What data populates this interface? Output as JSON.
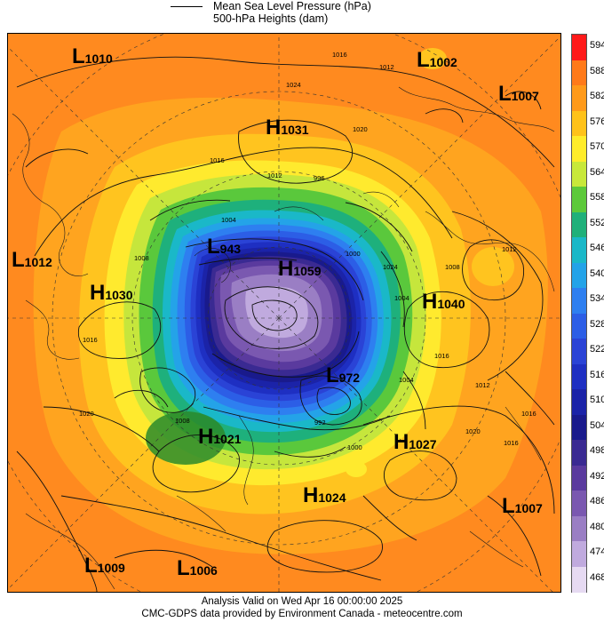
{
  "legend": {
    "mslp_label": "Mean Sea Level Pressure (hPa)",
    "heights_label": "500-hPa Heights (dam)"
  },
  "colorbar": {
    "levels": [
      {
        "label": "594",
        "color": "#ff1a1a"
      },
      {
        "label": "588",
        "color": "#ff7a1a"
      },
      {
        "label": "582",
        "color": "#ff9a1a"
      },
      {
        "label": "576",
        "color": "#ffc21a"
      },
      {
        "label": "570",
        "color": "#ffec2a"
      },
      {
        "label": "564",
        "color": "#c8e83a"
      },
      {
        "label": "558",
        "color": "#5cc93a"
      },
      {
        "label": "552",
        "color": "#1fb07a"
      },
      {
        "label": "546",
        "color": "#1ab8c8"
      },
      {
        "label": "540",
        "color": "#23a3e8"
      },
      {
        "label": "534",
        "color": "#2e7ff0"
      },
      {
        "label": "528",
        "color": "#2c5ee6"
      },
      {
        "label": "522",
        "color": "#2a43d6"
      },
      {
        "label": "516",
        "color": "#1e2fc2"
      },
      {
        "label": "510",
        "color": "#1b23a8"
      },
      {
        "label": "504",
        "color": "#191a8c"
      },
      {
        "label": "498",
        "color": "#3a2a92"
      },
      {
        "label": "492",
        "color": "#5a3a9e"
      },
      {
        "label": "486",
        "color": "#7a58b0"
      },
      {
        "label": "480",
        "color": "#9a7ec4"
      },
      {
        "label": "474",
        "color": "#c0aade"
      },
      {
        "label": "468",
        "color": "#e6daf2"
      }
    ]
  },
  "pressure_centers": [
    {
      "type": "L",
      "value": "1010"
    },
    {
      "type": "L",
      "value": "1002"
    },
    {
      "type": "L",
      "value": "1007"
    },
    {
      "type": "H",
      "value": "1031"
    },
    {
      "type": "L",
      "value": "1012"
    },
    {
      "type": "H",
      "value": "1030"
    },
    {
      "type": "L",
      "value": "943"
    },
    {
      "type": "H",
      "value": "1059"
    },
    {
      "type": "H",
      "value": "1040"
    },
    {
      "type": "L",
      "value": "972"
    },
    {
      "type": "H",
      "value": "1021"
    },
    {
      "type": "H",
      "value": "1027"
    },
    {
      "type": "H",
      "value": "1024"
    },
    {
      "type": "L",
      "value": "1007"
    },
    {
      "type": "L",
      "value": "1009"
    },
    {
      "type": "L",
      "value": "1006"
    }
  ],
  "isobar_labels": [
    "1016",
    "1012",
    "1024",
    "1020",
    "1016",
    "1012",
    "1008",
    "1004",
    "996",
    "1000",
    "1024",
    "1012",
    "1008",
    "1004",
    "1016",
    "1020",
    "1016",
    "1012",
    "1016",
    "1020",
    "1016",
    "1008",
    "1000",
    "1004",
    "992"
  ],
  "footer": {
    "line1": "Analysis Valid on Wed Apr 16 00:00:00 2025",
    "line2": "CMC-GDPS data provided by Environment Canada - meteocentre.com"
  }
}
